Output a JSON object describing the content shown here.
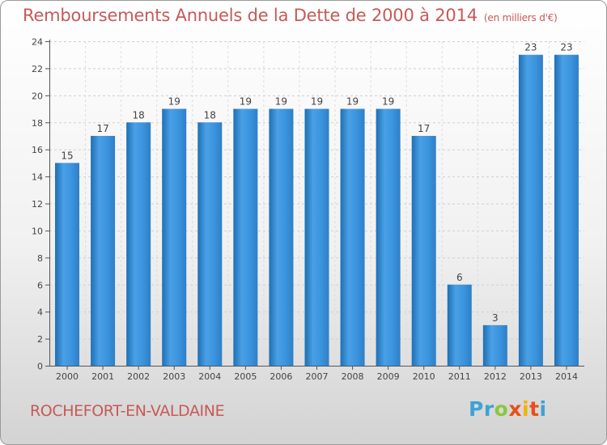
{
  "title": "Remboursements Annuels de la Dette de 2000 à 2014",
  "subtitle": "(en milliers d'€)",
  "commune": "ROCHEFORT-EN-VALDAINE",
  "logo": {
    "letters": [
      "P",
      "r",
      "o",
      "x",
      "i",
      "t",
      "i"
    ],
    "colors": [
      "#3ba3d8",
      "#3ba3d8",
      "#8cc63f",
      "#e94e1b",
      "#f2b300",
      "#e94e1b",
      "#3ba3d8"
    ]
  },
  "chart_data": {
    "type": "bar",
    "categories": [
      "2000",
      "2001",
      "2002",
      "2003",
      "2004",
      "2005",
      "2006",
      "2007",
      "2008",
      "2009",
      "2010",
      "2011",
      "2012",
      "2013",
      "2014"
    ],
    "values": [
      15,
      17,
      18,
      19,
      18,
      19,
      19,
      19,
      19,
      19,
      17,
      6,
      3,
      23,
      23
    ],
    "ylim": [
      0,
      24
    ],
    "yticks": [
      0,
      2,
      4,
      6,
      8,
      10,
      12,
      14,
      16,
      18,
      20,
      22,
      24
    ],
    "grid": true,
    "bar_color": "#2f8fd6",
    "xlabel": "",
    "ylabel": ""
  }
}
